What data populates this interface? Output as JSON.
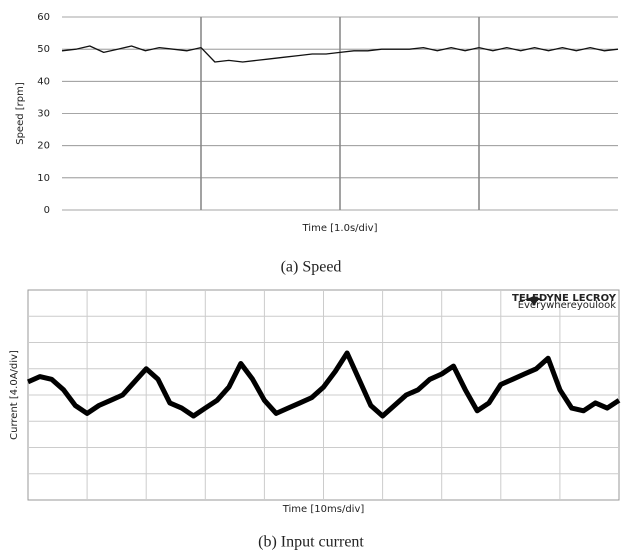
{
  "chart_data": [
    {
      "type": "line",
      "y_label": "Speed [rpm]",
      "x_label": "Time [1.0s/div]",
      "caption": "(a) Speed",
      "xlim": [
        0,
        4
      ],
      "x_divisions": 4,
      "ylim": [
        0,
        60
      ],
      "yticks": [
        0,
        10,
        20,
        30,
        40,
        50,
        60
      ],
      "grid": true,
      "x": [
        0,
        0.1,
        0.2,
        0.3,
        0.4,
        0.5,
        0.6,
        0.7,
        0.8,
        0.9,
        1.0,
        1.1,
        1.2,
        1.3,
        1.4,
        1.5,
        1.6,
        1.7,
        1.8,
        1.9,
        2.0,
        2.1,
        2.2,
        2.3,
        2.4,
        2.5,
        2.6,
        2.7,
        2.8,
        2.9,
        3.0,
        3.1,
        3.2,
        3.3,
        3.4,
        3.5,
        3.6,
        3.7,
        3.8,
        3.9,
        4.0
      ],
      "series": [
        {
          "color": "#111111",
          "values": [
            49.5,
            50,
            51,
            49,
            50,
            51,
            49.5,
            50.5,
            50,
            49.5,
            50.5,
            46,
            46.5,
            46,
            46.5,
            47,
            47.5,
            48,
            48.5,
            48.5,
            49,
            49.5,
            49.5,
            50,
            50,
            50,
            50.5,
            49.5,
            50.5,
            49.5,
            50.5,
            49.5,
            50.5,
            49.5,
            50.5,
            49.5,
            50.5,
            49.5,
            50.5,
            49.5,
            50
          ]
        }
      ]
    },
    {
      "type": "line",
      "y_label": "Current [4.0A/div]",
      "x_label": "Time [10ms/div]",
      "caption": "(b) Input current",
      "logo": "TELEDYNE LECROY",
      "logo_tagline": "Everywhereyoulook",
      "xlim": [
        0,
        10
      ],
      "ylim": [
        0,
        8
      ],
      "x_divisions": 10,
      "y_divisions": 8,
      "grid": true,
      "x": [
        0,
        0.2,
        0.4,
        0.6,
        0.8,
        1.0,
        1.2,
        1.4,
        1.6,
        1.8,
        2.0,
        2.2,
        2.4,
        2.6,
        2.8,
        3.0,
        3.2,
        3.4,
        3.6,
        3.8,
        4.0,
        4.2,
        4.4,
        4.6,
        4.8,
        5.0,
        5.2,
        5.4,
        5.6,
        5.8,
        6.0,
        6.2,
        6.4,
        6.6,
        6.8,
        7.0,
        7.2,
        7.4,
        7.6,
        7.8,
        8.0,
        8.2,
        8.4,
        8.6,
        8.8,
        9.0,
        9.2,
        9.4,
        9.6,
        9.8,
        10.0
      ],
      "series": [
        {
          "color": "#000000",
          "values": [
            4.5,
            4.7,
            4.6,
            4.2,
            3.6,
            3.3,
            3.6,
            3.8,
            4.0,
            4.5,
            5.0,
            4.6,
            3.7,
            3.5,
            3.2,
            3.5,
            3.8,
            4.3,
            5.2,
            4.6,
            3.8,
            3.3,
            3.5,
            3.7,
            3.9,
            4.3,
            4.9,
            5.6,
            4.6,
            3.6,
            3.2,
            3.6,
            4.0,
            4.2,
            4.6,
            4.8,
            5.1,
            4.2,
            3.4,
            3.7,
            4.4,
            4.6,
            4.8,
            5.0,
            5.4,
            4.2,
            3.5,
            3.4,
            3.7,
            3.5,
            3.8
          ]
        }
      ]
    }
  ]
}
